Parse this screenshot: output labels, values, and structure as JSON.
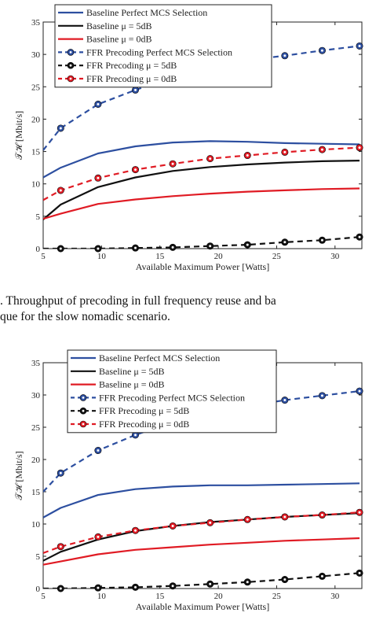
{
  "caption": {
    "line1": ".    Throughput of precoding in full frequency reuse and ba",
    "line2": "que for the slow nomadic scenario."
  },
  "colors": {
    "blue": "#2d4fa0",
    "black": "#111111",
    "red": "#e01b24"
  },
  "chart_data": [
    {
      "type": "line",
      "xlabel": "Available Maximum Power [Watts]",
      "ylabel": "𝒯ℋ [Mbit/s]",
      "xlim": [
        5,
        32.3
      ],
      "ylim": [
        0,
        35
      ],
      "xticks": [
        "5",
        "10",
        "15",
        "20",
        "25",
        "30"
      ],
      "yticks": [
        "0",
        "5",
        "10",
        "15",
        "20",
        "25",
        "30",
        "35"
      ],
      "grid": false,
      "legend_position": "top-left",
      "x": [
        5,
        6.5,
        9.7,
        12.9,
        16.1,
        19.3,
        22.5,
        25.7,
        28.9,
        32.1
      ],
      "series": [
        {
          "name": "Baseline Perfect MCS Selection",
          "color": "blue",
          "dash": false,
          "marker": false,
          "values": [
            11.0,
            12.5,
            14.7,
            15.8,
            16.4,
            16.6,
            16.5,
            16.3,
            16.2,
            16.1
          ]
        },
        {
          "name": "Baseline μ = 5dB",
          "color": "black",
          "dash": false,
          "marker": false,
          "values": [
            4.5,
            6.8,
            9.5,
            11.0,
            12.0,
            12.6,
            13.0,
            13.3,
            13.5,
            13.6
          ]
        },
        {
          "name": "Baseline μ = 0dB",
          "color": "red",
          "dash": false,
          "marker": false,
          "values": [
            4.6,
            5.4,
            6.9,
            7.6,
            8.1,
            8.5,
            8.8,
            9.0,
            9.2,
            9.3
          ]
        },
        {
          "name": "FFR Precoding Perfect MCS Selection",
          "color": "blue",
          "dash": true,
          "marker": true,
          "values": [
            15.2,
            18.6,
            22.3,
            24.5,
            26.5,
            28.0,
            29.1,
            29.8,
            30.6,
            31.3
          ]
        },
        {
          "name": "FFR Precoding μ = 5dB",
          "color": "black",
          "dash": true,
          "marker": true,
          "values": [
            0.0,
            0.0,
            0.0,
            0.1,
            0.2,
            0.4,
            0.6,
            1.0,
            1.3,
            1.8
          ]
        },
        {
          "name": "FFR Precoding μ = 0dB",
          "color": "red",
          "dash": true,
          "marker": true,
          "values": [
            7.5,
            9.0,
            10.9,
            12.2,
            13.1,
            13.9,
            14.4,
            14.9,
            15.3,
            15.6
          ]
        }
      ]
    },
    {
      "type": "line",
      "xlabel": "Available Maximum Power [Watts]",
      "ylabel": "𝒯ℋ [Mbit/s]",
      "xlim": [
        5,
        32.3
      ],
      "ylim": [
        0,
        35
      ],
      "xticks": [
        "5",
        "10",
        "15",
        "20",
        "25",
        "30"
      ],
      "yticks": [
        "0",
        "5",
        "10",
        "15",
        "20",
        "25",
        "30",
        "35"
      ],
      "grid": false,
      "legend_position": "top-left",
      "x": [
        5,
        6.5,
        9.7,
        12.9,
        16.1,
        19.3,
        22.5,
        25.7,
        28.9,
        32.1
      ],
      "series": [
        {
          "name": "Baseline Perfect MCS Selection",
          "color": "blue",
          "dash": false,
          "marker": false,
          "values": [
            11.0,
            12.5,
            14.5,
            15.4,
            15.8,
            16.0,
            16.0,
            16.1,
            16.2,
            16.3
          ]
        },
        {
          "name": "Baseline μ = 5dB",
          "color": "black",
          "dash": false,
          "marker": false,
          "values": [
            4.3,
            5.7,
            7.6,
            8.9,
            9.7,
            10.3,
            10.7,
            11.1,
            11.4,
            11.7
          ]
        },
        {
          "name": "Baseline μ = 0dB",
          "color": "red",
          "dash": false,
          "marker": false,
          "values": [
            3.7,
            4.2,
            5.3,
            6.0,
            6.4,
            6.8,
            7.1,
            7.4,
            7.6,
            7.8
          ]
        },
        {
          "name": "FFR Precoding Perfect MCS Selection",
          "color": "blue",
          "dash": true,
          "marker": true,
          "values": [
            15.0,
            17.9,
            21.4,
            23.8,
            25.8,
            27.2,
            28.3,
            29.2,
            29.9,
            30.6
          ]
        },
        {
          "name": "FFR Precoding μ = 5dB",
          "color": "black",
          "dash": true,
          "marker": true,
          "values": [
            0.0,
            0.0,
            0.1,
            0.2,
            0.4,
            0.7,
            1.0,
            1.4,
            1.9,
            2.4
          ]
        },
        {
          "name": "FFR Precoding μ = 0dB",
          "color": "red",
          "dash": true,
          "marker": true,
          "values": [
            5.5,
            6.5,
            8.0,
            9.0,
            9.7,
            10.2,
            10.7,
            11.1,
            11.4,
            11.8
          ]
        }
      ]
    }
  ]
}
